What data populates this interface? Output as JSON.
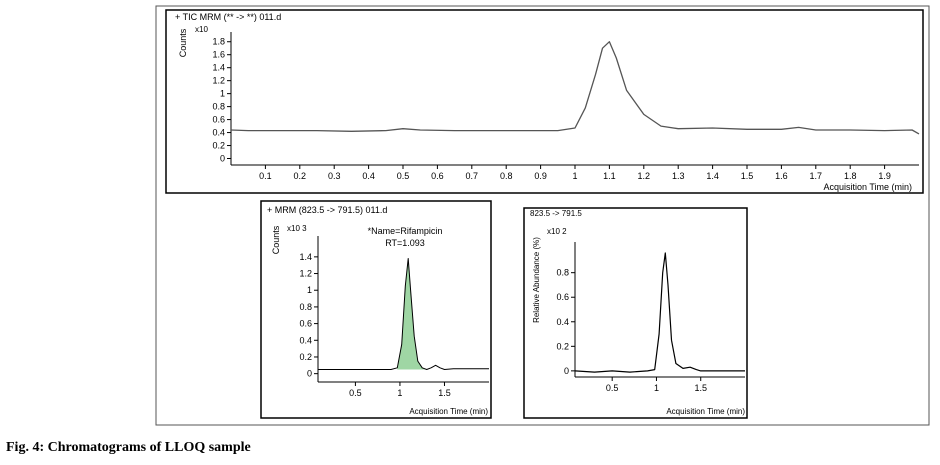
{
  "caption": "Fig. 4: Chromatograms of LLOQ sample",
  "chart_data": [
    {
      "type": "line",
      "title": "+ TIC MRM (** -> **) 011.d",
      "xlabel": "Acquisition Time (min)",
      "ylabel": "Counts",
      "y_scale_label": "x10",
      "xlim": [
        0,
        2.0
      ],
      "ylim": [
        -0.1,
        1.95
      ],
      "x_ticks": [
        0.1,
        0.2,
        0.3,
        0.4,
        0.5,
        0.6,
        0.7,
        0.8,
        0.9,
        1,
        1.1,
        1.2,
        1.3,
        1.4,
        1.5,
        1.6,
        1.7,
        1.8,
        1.9
      ],
      "x_tick_labels": [
        "0.1",
        "0.2",
        "0.3",
        "0.4",
        "0.5",
        "0.6",
        "0.7",
        "0.8",
        "0.9",
        "1",
        "1.1",
        "1.2",
        "1.3",
        "1.4",
        "1.5",
        "1.6",
        "1.7",
        "1.8",
        "1.9"
      ],
      "y_ticks": [
        0,
        0.2,
        0.4,
        0.6,
        0.8,
        1,
        1.2,
        1.4,
        1.6,
        1.8
      ],
      "y_tick_labels": [
        "0",
        "0.2",
        "0.4",
        "0.6",
        "0.8",
        "1",
        "1.2",
        "1.4",
        "1.6",
        "1.8"
      ],
      "series": [
        {
          "x": [
            0.0,
            0.05,
            0.15,
            0.25,
            0.35,
            0.45,
            0.5,
            0.55,
            0.65,
            0.75,
            0.85,
            0.95,
            1.0,
            1.03,
            1.06,
            1.08,
            1.1,
            1.12,
            1.15,
            1.2,
            1.25,
            1.3,
            1.4,
            1.5,
            1.6,
            1.65,
            1.7,
            1.8,
            1.9,
            1.98,
            2.0
          ],
          "y": [
            0.44,
            0.43,
            0.43,
            0.43,
            0.42,
            0.43,
            0.46,
            0.44,
            0.43,
            0.43,
            0.43,
            0.43,
            0.47,
            0.78,
            1.3,
            1.7,
            1.8,
            1.55,
            1.05,
            0.68,
            0.5,
            0.46,
            0.47,
            0.45,
            0.45,
            0.48,
            0.44,
            0.44,
            0.43,
            0.44,
            0.38
          ]
        }
      ]
    },
    {
      "type": "area",
      "title": "+ MRM (823.5 -> 791.5) 011.d",
      "xlabel": "Acquisition Time (min)",
      "ylabel": "Counts",
      "y_scale_label": "x10 3",
      "annotations": [
        "*Name=Rifampicin",
        "RT=1.093"
      ],
      "xlim": [
        0.08,
        2.0
      ],
      "ylim": [
        -0.1,
        1.65
      ],
      "x_ticks": [
        0.5,
        1,
        1.5
      ],
      "x_tick_labels": [
        "0.5",
        "1",
        "1.5"
      ],
      "y_ticks": [
        0,
        0.2,
        0.4,
        0.6,
        0.8,
        1,
        1.2,
        1.4
      ],
      "y_tick_labels": [
        "0",
        "0.2",
        "0.4",
        "0.6",
        "0.8",
        "1",
        "1.2",
        "1.4"
      ],
      "fill_color": "#9fd6a4",
      "series": [
        {
          "x": [
            0.08,
            0.5,
            0.9,
            0.97,
            1.02,
            1.06,
            1.093,
            1.12,
            1.16,
            1.2,
            1.25,
            1.3,
            1.35,
            1.4,
            1.45,
            1.5,
            1.6,
            1.8,
            2.0
          ],
          "y": [
            0.05,
            0.05,
            0.05,
            0.07,
            0.35,
            1.05,
            1.38,
            1.0,
            0.45,
            0.15,
            0.07,
            0.05,
            0.07,
            0.1,
            0.07,
            0.05,
            0.06,
            0.06,
            0.06
          ]
        }
      ]
    },
    {
      "type": "line",
      "title": "823.5 -> 791.5",
      "xlabel": "Acquisition Time (min)",
      "ylabel": "Relative Abundance (%)",
      "y_scale_label": "x10 2",
      "xlim": [
        0.08,
        2.0
      ],
      "ylim": [
        -0.05,
        1.05
      ],
      "x_ticks": [
        0.5,
        1,
        1.5
      ],
      "x_tick_labels": [
        "0.5",
        "1",
        "1.5"
      ],
      "y_ticks": [
        0,
        0.2,
        0.4,
        0.6,
        0.8
      ],
      "y_tick_labels": [
        "0",
        "0.2",
        "0.4",
        "0.6",
        "0.8"
      ],
      "series": [
        {
          "x": [
            0.08,
            0.3,
            0.5,
            0.7,
            0.9,
            0.98,
            1.03,
            1.07,
            1.1,
            1.13,
            1.17,
            1.22,
            1.3,
            1.38,
            1.45,
            1.5,
            1.7,
            2.0
          ],
          "y": [
            0.0,
            -0.01,
            0.0,
            -0.01,
            0.0,
            0.01,
            0.3,
            0.8,
            0.96,
            0.7,
            0.25,
            0.06,
            0.02,
            0.03,
            0.01,
            0.0,
            0.0,
            0.0
          ]
        }
      ]
    }
  ]
}
